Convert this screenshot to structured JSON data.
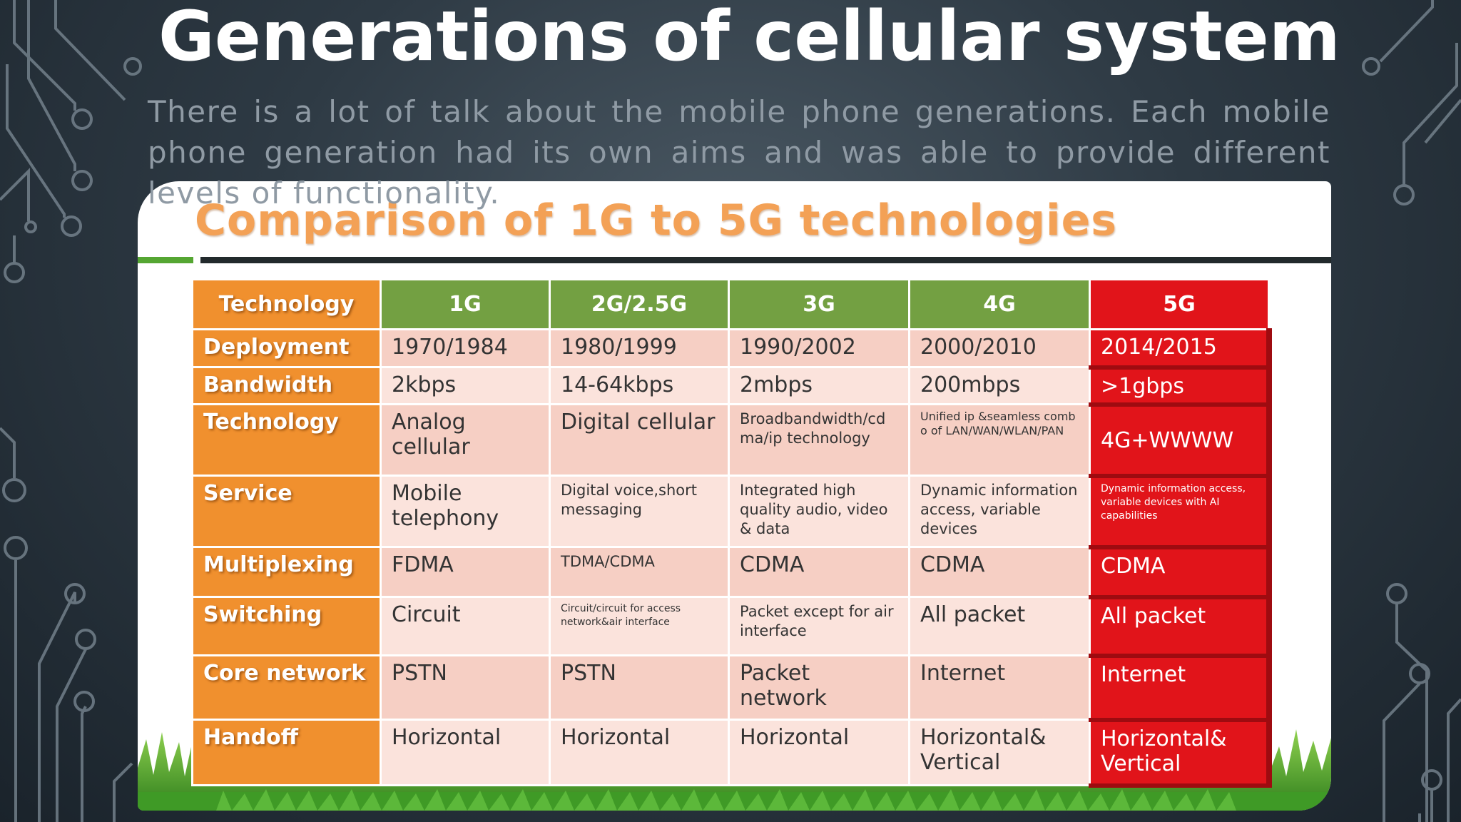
{
  "slide": {
    "title": "Generations of cellular system",
    "intro": "There is a lot of talk about the mobile phone generations. Each mobile phone generation had its own aims and was able to provide different levels of functionality."
  },
  "card": {
    "title": "Comparison of 1G to  5G technologies"
  },
  "table": {
    "headers": [
      "Technology",
      "1G",
      "2G/2.5G",
      "3G",
      "4G",
      "5G"
    ],
    "rows": [
      {
        "label": "Deployment",
        "cells": [
          "1970/1984",
          "1980/1999",
          "1990/2002",
          "2000/2010",
          "2014/2015"
        ]
      },
      {
        "label": "Bandwidth",
        "cells": [
          "2kbps",
          "14-64kbps",
          "2mbps",
          "200mbps",
          ">1gbps"
        ]
      },
      {
        "label": "Technology",
        "cells": [
          "Analog cellular",
          "Digital cellular",
          "Broadbandwidth/cdma/ip technology",
          "Unified ip &seamless combo of LAN/WAN/WLAN/PAN",
          "4G+WWWW"
        ]
      },
      {
        "label": "Service",
        "cells": [
          "Mobile telephony",
          "Digital voice,short messaging",
          "Integrated high quality audio, video & data",
          "Dynamic information access, variable devices",
          "Dynamic information access, variable devices with AI capabilities"
        ]
      },
      {
        "label": "Multiplexing",
        "cells": [
          "FDMA",
          "TDMA/CDMA",
          "CDMA",
          "CDMA",
          "CDMA"
        ]
      },
      {
        "label": "Switching",
        "cells": [
          "Circuit",
          "Circuit/circuit for access network&air interface",
          "Packet except for air interface",
          "All packet",
          "All packet"
        ]
      },
      {
        "label": "Core network",
        "cells": [
          "PSTN",
          "PSTN",
          "Packet network",
          "Internet",
          "Internet"
        ]
      },
      {
        "label": "Handoff",
        "cells": [
          "Horizontal",
          "Horizontal",
          "Horizontal",
          "Horizontal& Vertical",
          "Horizontal& Vertical"
        ]
      }
    ]
  },
  "colors": {
    "background": "#2e3a44",
    "title": "#ffffff",
    "intro_text": "#8f9aa4",
    "card_title": "#f3a156",
    "header_orange": "#f0902e",
    "header_green": "#73a042",
    "accent_red": "#e1141a",
    "cell_pink": "#f6cfc4",
    "cell_light_pink": "#fbe3dc"
  }
}
